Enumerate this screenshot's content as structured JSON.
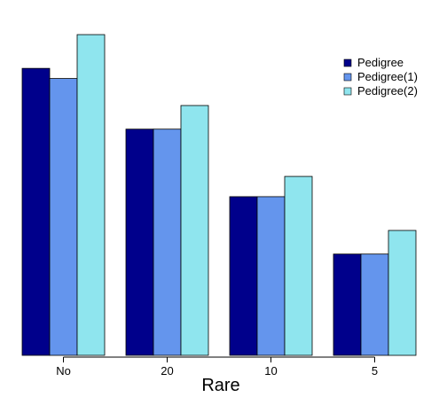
{
  "chart_data": {
    "type": "bar",
    "xlabel": "Rare",
    "categories": [
      "No",
      "20",
      "10",
      "5"
    ],
    "series": [
      {
        "name": "Pedigree",
        "color": "#00008B",
        "values": [
          0.85,
          0.67,
          0.47,
          0.3
        ]
      },
      {
        "name": "Pedigree(1)",
        "color": "#6495ED",
        "values": [
          0.82,
          0.67,
          0.47,
          0.3
        ]
      },
      {
        "name": "Pedigree(2)",
        "color": "#8FE5EE",
        "values": [
          0.95,
          0.74,
          0.53,
          0.37
        ]
      }
    ],
    "ylim": [
      0,
      1.0
    ],
    "grid": false,
    "yaxis_visible": false,
    "legend_position": "top-right"
  }
}
